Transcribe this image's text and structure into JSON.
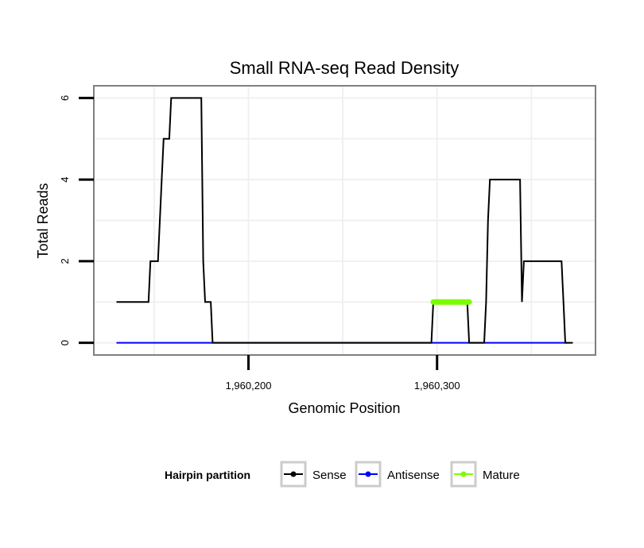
{
  "chart_data": {
    "type": "line",
    "title": "Small RNA-seq Read Density",
    "xlabel": "Genomic Position",
    "ylabel": "Total Reads",
    "xlim": [
      1960118,
      1960384
    ],
    "ylim": [
      -0.3,
      6.3
    ],
    "x_ticks": [
      1960200,
      1960300
    ],
    "x_tick_labels": [
      "1,960,200",
      "1,960,300"
    ],
    "y_ticks": [
      0,
      2,
      4,
      6
    ],
    "y_tick_labels": [
      "0",
      "2",
      "4",
      "6"
    ],
    "grid": true,
    "legend": {
      "title": "Hairpin partition",
      "position": "bottom",
      "entries": [
        "Sense",
        "Antisense",
        "Mature"
      ]
    },
    "series": [
      {
        "name": "Sense",
        "color": "#000000",
        "x": [
          1960130,
          1960147,
          1960148,
          1960152,
          1960154,
          1960155,
          1960158,
          1960159,
          1960161,
          1960175,
          1960176,
          1960177,
          1960180,
          1960181,
          1960297,
          1960298,
          1960316,
          1960317,
          1960325,
          1960326,
          1960327,
          1960328,
          1960344,
          1960345,
          1960346,
          1960366,
          1960367,
          1960368,
          1960372
        ],
        "y": [
          1,
          1,
          2,
          2,
          4,
          5,
          5,
          6,
          6,
          6,
          2,
          1,
          1,
          0,
          0,
          1,
          1,
          0,
          0,
          1,
          3,
          4,
          4,
          1,
          2,
          2,
          1,
          0,
          0
        ]
      },
      {
        "name": "Antisense",
        "color": "#0000ff",
        "x": [
          1960130,
          1960370
        ],
        "y": [
          0,
          0
        ]
      },
      {
        "name": "Mature",
        "color": "#7cfc00",
        "x": [
          1960298,
          1960317
        ],
        "y": [
          1,
          1
        ]
      }
    ]
  }
}
